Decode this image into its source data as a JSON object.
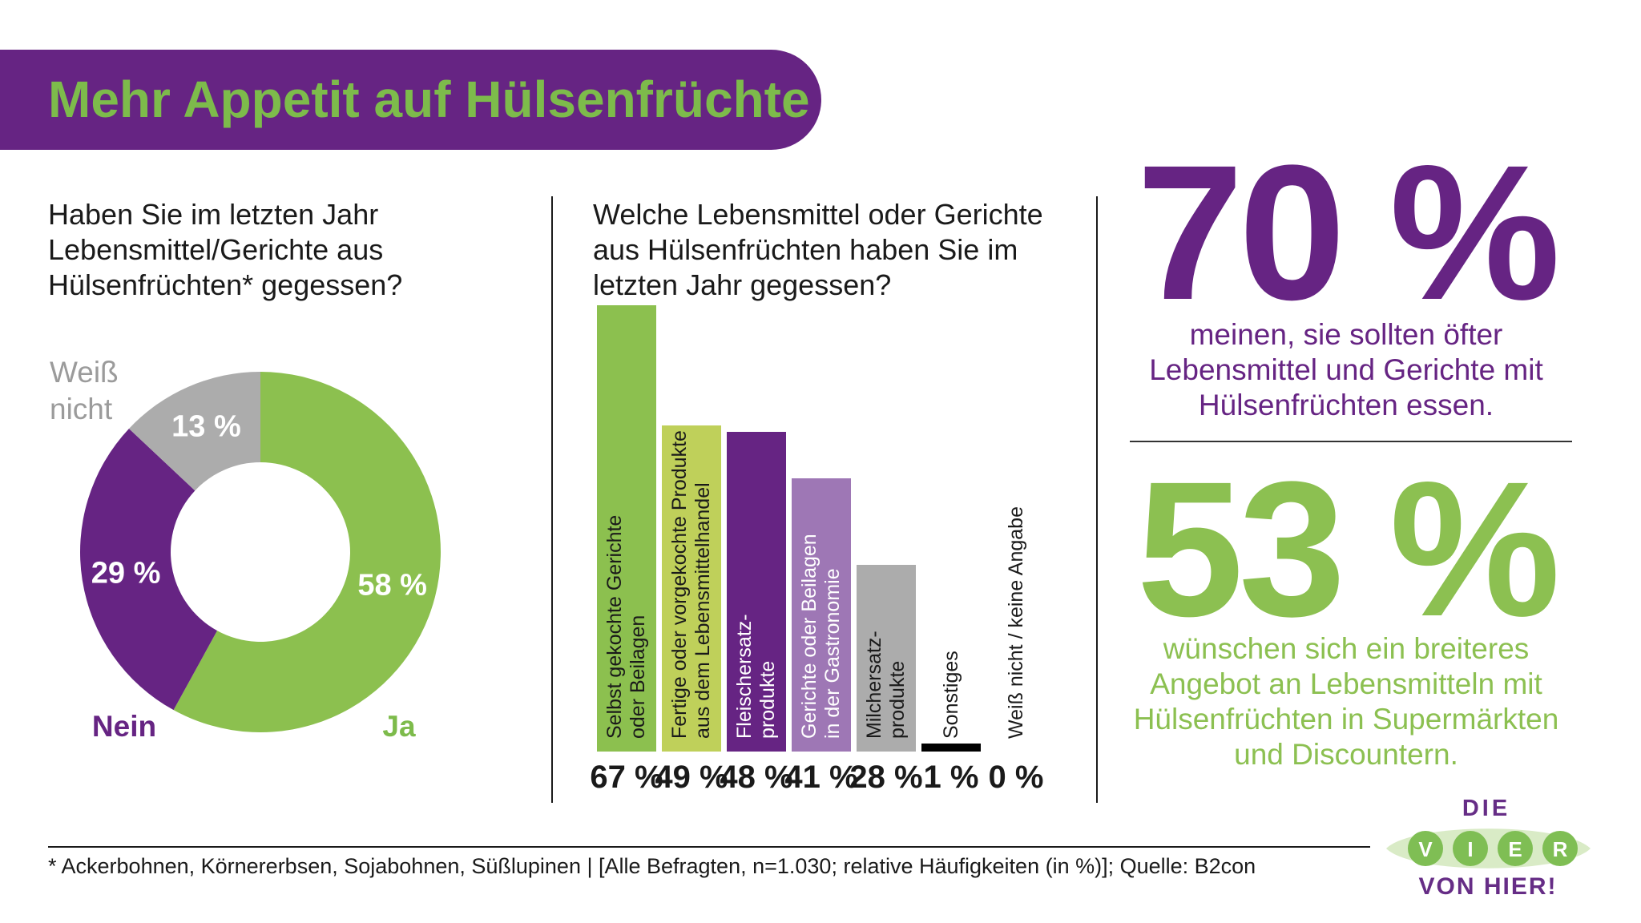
{
  "header": {
    "title": "Mehr Appetit auf Hülsenfrüchte"
  },
  "colors": {
    "banner_purple": "#662483",
    "title_green": "#7DBB4B",
    "stat_purple": "#662483",
    "stat_green": "#8CC051",
    "gray": "#ACACAC",
    "text_dark": "#1a1a1a"
  },
  "donut_section": {
    "question": "Haben Sie im letzten Jahr\nLebensmittel/Gerichte aus\nHülsenfrüchten* gegessen?",
    "outer_labels": {
      "weiss_nicht": "Weiß\nnicht",
      "nein": "Nein",
      "ja": "Ja"
    }
  },
  "bar_section": {
    "question": "Welche Lebensmittel oder Gerichte\naus Hülsenfrüchten haben Sie im\nletzten Jahr gegessen?"
  },
  "stats": {
    "stat1": {
      "value": "70 %",
      "text": "meinen, sie sollten öfter\nLebensmittel und Gerichte mit\nHülsenfrüchten essen."
    },
    "stat2": {
      "value": "53 %",
      "text": "wünschen sich ein breiteres\nAngebot an Lebensmitteln mit\nHülsenfrüchten in Supermärkten\nund Discountern."
    }
  },
  "footnote": "* Ackerbohnen, Körnererbsen, Sojabohnen, Süßlupinen | [Alle Befragten, n=1.030; relative Häufigkeiten (in %)]; Quelle: B2con",
  "logo": {
    "line1": "DIE",
    "letters": [
      "V",
      "I",
      "E",
      "R"
    ],
    "line2": "VON HIER!"
  },
  "chart_data": [
    {
      "type": "pie",
      "donut": true,
      "title": "Haben Sie im letzten Jahr Lebensmittel/Gerichte aus Hülsenfrüchten* gegessen?",
      "start_at_top_clockwise": true,
      "segments": [
        {
          "label": "Ja",
          "value": 58,
          "color": "#8CC04F",
          "value_label": "58 %"
        },
        {
          "label": "Nein",
          "value": 29,
          "color": "#662483",
          "value_label": "29 %"
        },
        {
          "label": "Weiß nicht",
          "value": 13,
          "color": "#ACACAC",
          "value_label": "13 %"
        }
      ]
    },
    {
      "type": "bar",
      "title": "Welche Lebensmittel oder Gerichte aus Hülsenfrüchten haben Sie im letzten Jahr gegessen?",
      "unit": "%",
      "ylim": [
        0,
        70
      ],
      "categories": [
        "Selbst gekochte Gerichte oder Beilagen",
        "Fertige oder vorgekochte Produkte aus dem Lebensmittelhandel",
        "Fleischersatzprodukte",
        "Gerichte oder Beilagen in der Gastronomie",
        "Milchersatzprodukte",
        "Sonstiges",
        "Weiß nicht / keine Angabe"
      ],
      "values": [
        67,
        49,
        48,
        41,
        28,
        1,
        0
      ],
      "value_labels": [
        "67 %",
        "49 %",
        "48 %",
        "41 %",
        "28 %",
        "1 %",
        "0 %"
      ],
      "bar_colors": [
        "#8CC04F",
        "#BFD05A",
        "#662483",
        "#9E77B5",
        "#ACACAC",
        "#000000",
        null
      ],
      "label_lines": [
        [
          "Selbst gekochte Gerichte",
          "oder Beilagen"
        ],
        [
          "Fertige oder vorgekochte Produkte",
          "aus dem Lebensmittelhandel"
        ],
        [
          "Fleischersatz-",
          "produkte"
        ],
        [
          "Gerichte oder Beilagen",
          "in der Gastronomie"
        ],
        [
          "Milchersatz-",
          "produkte"
        ],
        [
          "Sonstiges"
        ],
        [
          "Weiß nicht / keine Angabe"
        ]
      ],
      "label_colors": [
        "#1a1a1a",
        "#1a1a1a",
        "#ffffff",
        "#ffffff",
        "#1a1a1a",
        "#1a1a1a",
        "#1a1a1a"
      ]
    }
  ]
}
